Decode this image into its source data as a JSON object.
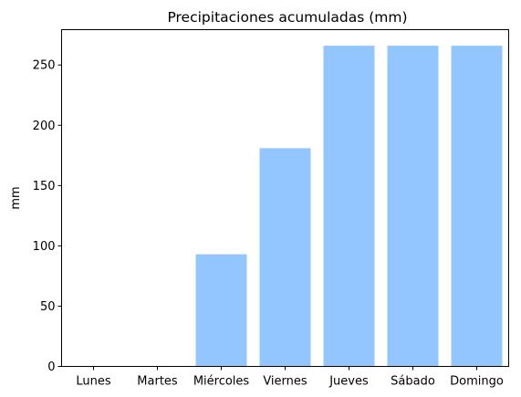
{
  "chart_data": {
    "type": "bar",
    "title": "Precipitaciones acumuladas (mm)",
    "xlabel": "",
    "ylabel": "mm",
    "categories": [
      "Lunes",
      "Martes",
      "Miércoles",
      "Viernes",
      "Jueves",
      "Sábado",
      "Domingo"
    ],
    "values": [
      0,
      0,
      93,
      181,
      266,
      266,
      266
    ],
    "ylim": [
      0,
      279.3
    ],
    "yticks": [
      0,
      50,
      100,
      150,
      200,
      250
    ],
    "grid": false,
    "legend": "none",
    "bar_color": "#93c6fe"
  }
}
